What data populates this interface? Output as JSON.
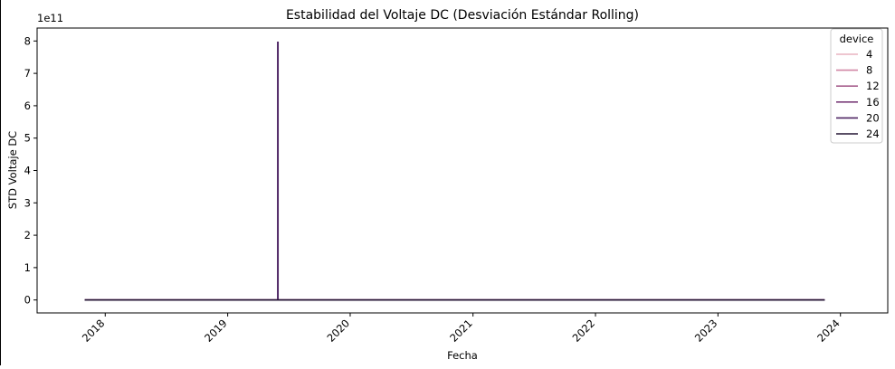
{
  "chart_data": {
    "type": "line",
    "title": "Estabilidad del Voltaje DC (Desviación Estándar Rolling)",
    "xlabel": "Fecha",
    "ylabel": "STD Voltaje DC",
    "y_offset_label": "1e11",
    "y_scale_multiplier": 100000000000,
    "x_axis_type": "date",
    "xlim": [
      "2017-06-12",
      "2024-05-21"
    ],
    "ylim": [
      -0.4,
      8.4
    ],
    "x_ticks": [
      "2018-01-01",
      "2019-01-01",
      "2020-01-01",
      "2021-01-01",
      "2022-01-01",
      "2023-01-01",
      "2024-01-01"
    ],
    "x_tick_labels": [
      "2018",
      "2019",
      "2020",
      "2021",
      "2022",
      "2023",
      "2024"
    ],
    "y_ticks": [
      0,
      1,
      2,
      3,
      4,
      5,
      6,
      7,
      8
    ],
    "y_tick_labels": [
      "0",
      "1",
      "2",
      "3",
      "4",
      "5",
      "6",
      "7",
      "8"
    ],
    "x_tick_rotation": 45,
    "grid": false,
    "legend": {
      "title": "device",
      "placement": "top-right",
      "entries": [
        "4",
        "8",
        "12",
        "16",
        "20",
        "24"
      ]
    },
    "series": [
      {
        "name": "4",
        "color": "#e8b3c0",
        "x": [
          "2017-11-01",
          "2023-11-15"
        ],
        "y": [
          0,
          0
        ]
      },
      {
        "name": "8",
        "color": "#d186a4",
        "x": [
          "2017-11-01",
          "2023-11-15"
        ],
        "y": [
          0,
          0
        ]
      },
      {
        "name": "12",
        "color": "#a85f8e",
        "x": [
          "2017-11-01",
          "2023-11-15"
        ],
        "y": [
          0,
          0
        ]
      },
      {
        "name": "16",
        "color": "#7b3e7a",
        "x": [
          "2017-11-01",
          "2023-11-15"
        ],
        "y": [
          0,
          0
        ]
      },
      {
        "name": "20",
        "color": "#4d2463",
        "x": [
          "2017-11-01",
          "2019-05-30",
          "2019-05-30",
          "2019-05-31",
          "2019-05-31",
          "2023-11-15"
        ],
        "y": [
          0,
          0,
          7.96,
          7.96,
          0,
          0
        ]
      },
      {
        "name": "24",
        "color": "#241534",
        "x": [
          "2017-11-01",
          "2023-11-15"
        ],
        "y": [
          0,
          0
        ]
      }
    ]
  }
}
